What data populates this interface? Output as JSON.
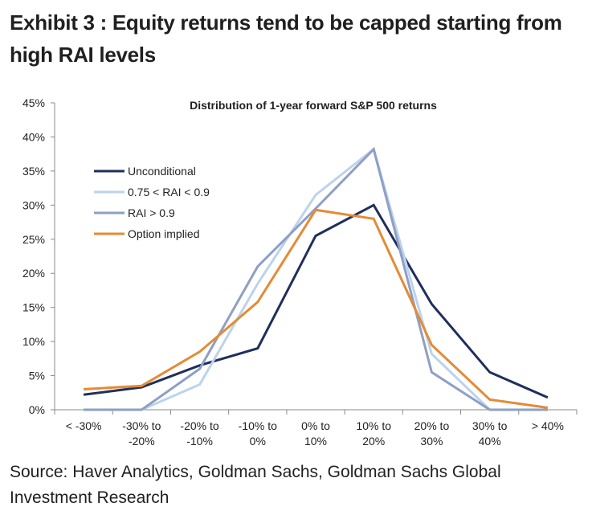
{
  "exhibit": {
    "heading_line1": "Exhibit 3 : Equity returns tend to be capped starting from",
    "heading_line2": "high RAI levels",
    "source_line1": "Source: Haver Analytics, Goldman Sachs, Goldman Sachs Global",
    "source_line2": "Investment Research"
  },
  "chart_data": {
    "type": "line",
    "title": "Distribution  of 1-year forward S&P 500 returns",
    "xlabel": "",
    "ylabel": "",
    "categories": [
      [
        "< -30%"
      ],
      [
        "-30% to",
        "-20%"
      ],
      [
        "-20% to",
        "-10%"
      ],
      [
        "-10% to",
        "0%"
      ],
      [
        "0% to",
        "10%"
      ],
      [
        "10% to",
        "20%"
      ],
      [
        "20% to",
        "30%"
      ],
      [
        "30% to",
        "40%"
      ],
      [
        "> 40%"
      ]
    ],
    "ylim": [
      0,
      45
    ],
    "yticks": [
      0,
      5,
      10,
      15,
      20,
      25,
      30,
      35,
      40,
      45
    ],
    "ytick_labels": [
      "0%",
      "5%",
      "10%",
      "15%",
      "20%",
      "25%",
      "30%",
      "35%",
      "40%",
      "45%"
    ],
    "grid": false,
    "legend_position": "top-left",
    "series": [
      {
        "name": "Unconditional",
        "color": "#1f2f5c",
        "values": [
          2.2,
          3.3,
          6.5,
          9.0,
          25.5,
          30.0,
          15.5,
          5.5,
          1.8
        ]
      },
      {
        "name": "0.75 < RAI < 0.9",
        "color": "#bcd3ec",
        "values": [
          0.0,
          0.0,
          3.7,
          18.5,
          31.5,
          38.2,
          8.2,
          0.0,
          0.0
        ]
      },
      {
        "name": "RAI > 0.9",
        "color": "#8f9fc4",
        "values": [
          0.0,
          0.0,
          6.0,
          21.0,
          29.5,
          38.2,
          5.5,
          0.0,
          0.0
        ]
      },
      {
        "name": "Option implied",
        "color": "#e58a35",
        "values": [
          3.0,
          3.5,
          8.5,
          15.8,
          29.3,
          28.0,
          9.5,
          1.5,
          0.3
        ]
      }
    ]
  }
}
